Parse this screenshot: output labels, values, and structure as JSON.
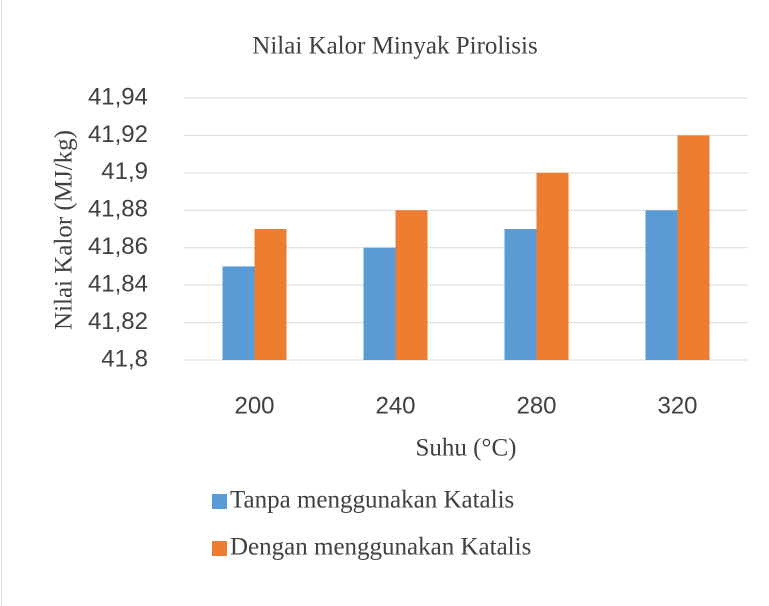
{
  "chart_data": {
    "type": "bar",
    "title": "Nilai  Kalor Minyak  Pirolisis",
    "x_label": "Suhu (°C)",
    "y_label": "Nilai  Kalor (MJ/kg)",
    "categories": [
      "200",
      "240",
      "280",
      "320"
    ],
    "series": [
      {
        "name": "Tanpa menggunakan Katalis",
        "color": "#5b9bd5",
        "values": [
          41.85,
          41.86,
          41.87,
          41.88
        ]
      },
      {
        "name": "Dengan menggunakan Katalis",
        "color": "#ed7d31",
        "values": [
          41.87,
          41.88,
          41.9,
          41.92
        ]
      }
    ],
    "ylim": [
      41.8,
      41.94
    ],
    "yticks": [
      {
        "value": 41.8,
        "label": "41,8"
      },
      {
        "value": 41.82,
        "label": "41,82"
      },
      {
        "value": 41.84,
        "label": "41,84"
      },
      {
        "value": 41.86,
        "label": "41,86"
      },
      {
        "value": 41.88,
        "label": "41,88"
      },
      {
        "value": 41.9,
        "label": "41,9"
      },
      {
        "value": 41.92,
        "label": "41,92"
      },
      {
        "value": 41.94,
        "label": "41,94"
      }
    ],
    "grid": true,
    "legend": "bottom"
  }
}
